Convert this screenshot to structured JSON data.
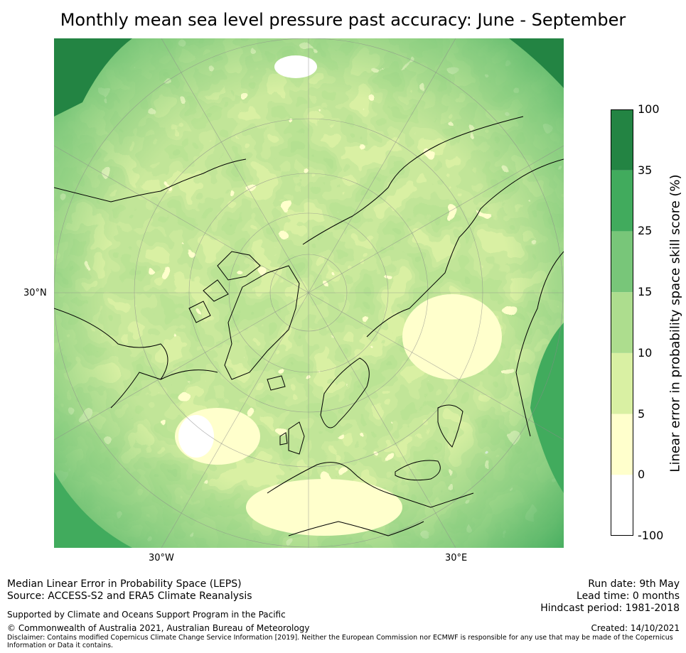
{
  "title": "Monthly mean sea level pressure past accuracy: June - September",
  "axes": {
    "lat_label_left": "30°N",
    "lon_label_bottom_left": "30°W",
    "lon_label_bottom_right": "30°E"
  },
  "colorbar": {
    "label": "Linear error in probability space skill score (%)",
    "ticks": [
      "100",
      "35",
      "25",
      "15",
      "10",
      "5",
      "0",
      "-100"
    ],
    "bins": [
      {
        "from": "-100",
        "to": "0",
        "color": "#ffffff"
      },
      {
        "from": "0",
        "to": "5",
        "color": "#ffffcc"
      },
      {
        "from": "5",
        "to": "10",
        "color": "#d9f0a3"
      },
      {
        "from": "10",
        "to": "15",
        "color": "#addd8e"
      },
      {
        "from": "15",
        "to": "25",
        "color": "#78c679"
      },
      {
        "from": "25",
        "to": "35",
        "color": "#41ab5d"
      },
      {
        "from": "35",
        "to": "100",
        "color": "#238443"
      }
    ]
  },
  "footer": {
    "method": "Median Linear Error in Probability Space (LEPS)",
    "source": "Source: ACCESS-S2 and ERA5 Climate Reanalysis",
    "support": "Supported by Climate and Oceans Support Program in the Pacific",
    "copyright": "© Commonwealth of Australia 2021, Australian Bureau of Meteorology",
    "disclaimer_1": "Disclaimer: Contains modified Copernicus Climate Change Service Information [2019]. Neither the European Commission nor ECMWF is responsible for any use that may be made of the Copernicus",
    "disclaimer_2": "Information or Data it contains.",
    "run_date": "Run date: 9th May",
    "lead_time": "Lead time: 0 months",
    "hindcast": "Hindcast period: 1981-2018",
    "created": "Created: 14/10/2021"
  }
}
